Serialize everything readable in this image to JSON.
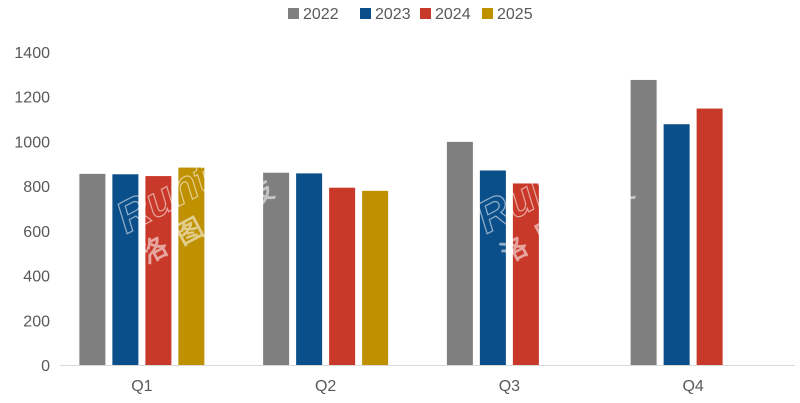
{
  "chart_data": {
    "type": "bar",
    "categories": [
      "Q1",
      "Q2",
      "Q3",
      "Q4"
    ],
    "series": [
      {
        "name": "2022",
        "color": "#7f7f7f",
        "values": [
          855,
          860,
          998,
          1275
        ]
      },
      {
        "name": "2023",
        "color": "#0b4f8a",
        "values": [
          853,
          857,
          870,
          1077
        ]
      },
      {
        "name": "2024",
        "color": "#c9392a",
        "values": [
          845,
          793,
          812,
          1147
        ]
      },
      {
        "name": "2025",
        "color": "#bf9000",
        "values": [
          883,
          779,
          null,
          null
        ]
      }
    ],
    "yticks": [
      "0",
      "200",
      "400",
      "600",
      "800",
      "1000",
      "1200",
      "1400"
    ],
    "ylim": [
      0,
      1400
    ],
    "grid": false,
    "legend": "top-center"
  },
  "watermark": {
    "latin": "Runto",
    "cjk": "洛图科技"
  }
}
